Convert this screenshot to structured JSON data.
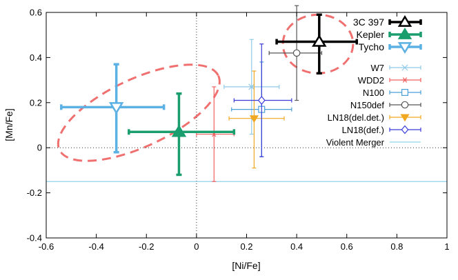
{
  "chart_data": {
    "type": "scatter",
    "xlabel": "[Ni/Fe]",
    "ylabel": "[Mn/Fe]",
    "xlim": [
      -0.6,
      1.0
    ],
    "ylim": [
      -0.4,
      0.6
    ],
    "xticks": [
      "-0.6",
      "-0.4",
      "-0.2",
      "0",
      "0.2",
      "0.4",
      "0.6",
      "0.8",
      "1"
    ],
    "yticks": [
      "-0.4",
      "-0.2",
      "0",
      "0.2",
      "0.4",
      "0.6"
    ],
    "grid": false,
    "zero_lines": "dotted",
    "legend_position": "top-right",
    "observed": [
      {
        "name": "3C 397",
        "color": "#000000",
        "marker": "triangle-open",
        "x": 0.49,
        "y": 0.47,
        "xerr": [
          0.17,
          0.15
        ],
        "yerr": [
          0.14,
          0.12
        ]
      },
      {
        "name": "Kepler",
        "color": "#1a9e6e",
        "marker": "triangle-filled",
        "x": -0.07,
        "y": 0.07,
        "xerr": [
          0.2,
          0.22
        ],
        "yerr": [
          0.19,
          0.17
        ]
      },
      {
        "name": "Tycho",
        "color": "#5bb1e3",
        "marker": "triangle-down-open",
        "x": -0.32,
        "y": 0.18,
        "xerr": [
          0.22,
          0.19
        ],
        "yerr": [
          0.2,
          0.19
        ]
      }
    ],
    "models": [
      {
        "name": "W7",
        "color": "#8ec9ea",
        "marker": "x",
        "x": 0.22,
        "y": 0.27,
        "xerr": [
          0.11,
          0.11
        ],
        "yerr": [
          0.21,
          0.21
        ]
      },
      {
        "name": "WDD2",
        "color": "#f06060",
        "marker": "asterisk",
        "x": 0.07,
        "y": 0.06,
        "xerr": [
          0.07,
          0.08
        ],
        "yerr": [
          0.21,
          0.21
        ]
      },
      {
        "name": "N100",
        "color": "#4a9fd8",
        "marker": "square-open",
        "x": 0.26,
        "y": 0.17,
        "xerr": [
          0.12,
          0.12
        ],
        "yerr": [
          0.21,
          0.21
        ]
      },
      {
        "name": "N150def",
        "color": "#555555",
        "marker": "circle-open",
        "x": 0.4,
        "y": 0.42,
        "xerr": [
          0.11,
          0.1
        ],
        "yerr": [
          0.21,
          0.21
        ]
      },
      {
        "name": "LN18(del.det.)",
        "color": "#f0a820",
        "marker": "triangle-down-filled",
        "x": 0.23,
        "y": 0.13,
        "xerr": [
          0.1,
          0.12
        ],
        "yerr": [
          0.22,
          0.21
        ]
      },
      {
        "name": "LN18(def.)",
        "color": "#3a3ad8",
        "marker": "diamond-open",
        "x": 0.26,
        "y": 0.21,
        "xerr": [
          0.11,
          0.12
        ],
        "yerr": [
          0.25,
          0.25
        ]
      }
    ],
    "reference_line": {
      "name": "Violent Merger",
      "color": "#8fd3ea",
      "y": -0.15
    },
    "ellipses": [
      {
        "cx": -0.23,
        "cy": 0.155,
        "rx": 0.35,
        "ry": 0.15,
        "rotation_deg": 25,
        "color": "#f07070"
      },
      {
        "cx": 0.485,
        "cy": 0.46,
        "rx": 0.14,
        "ry": 0.13,
        "rotation_deg": 0,
        "color": "#f07070"
      }
    ]
  }
}
